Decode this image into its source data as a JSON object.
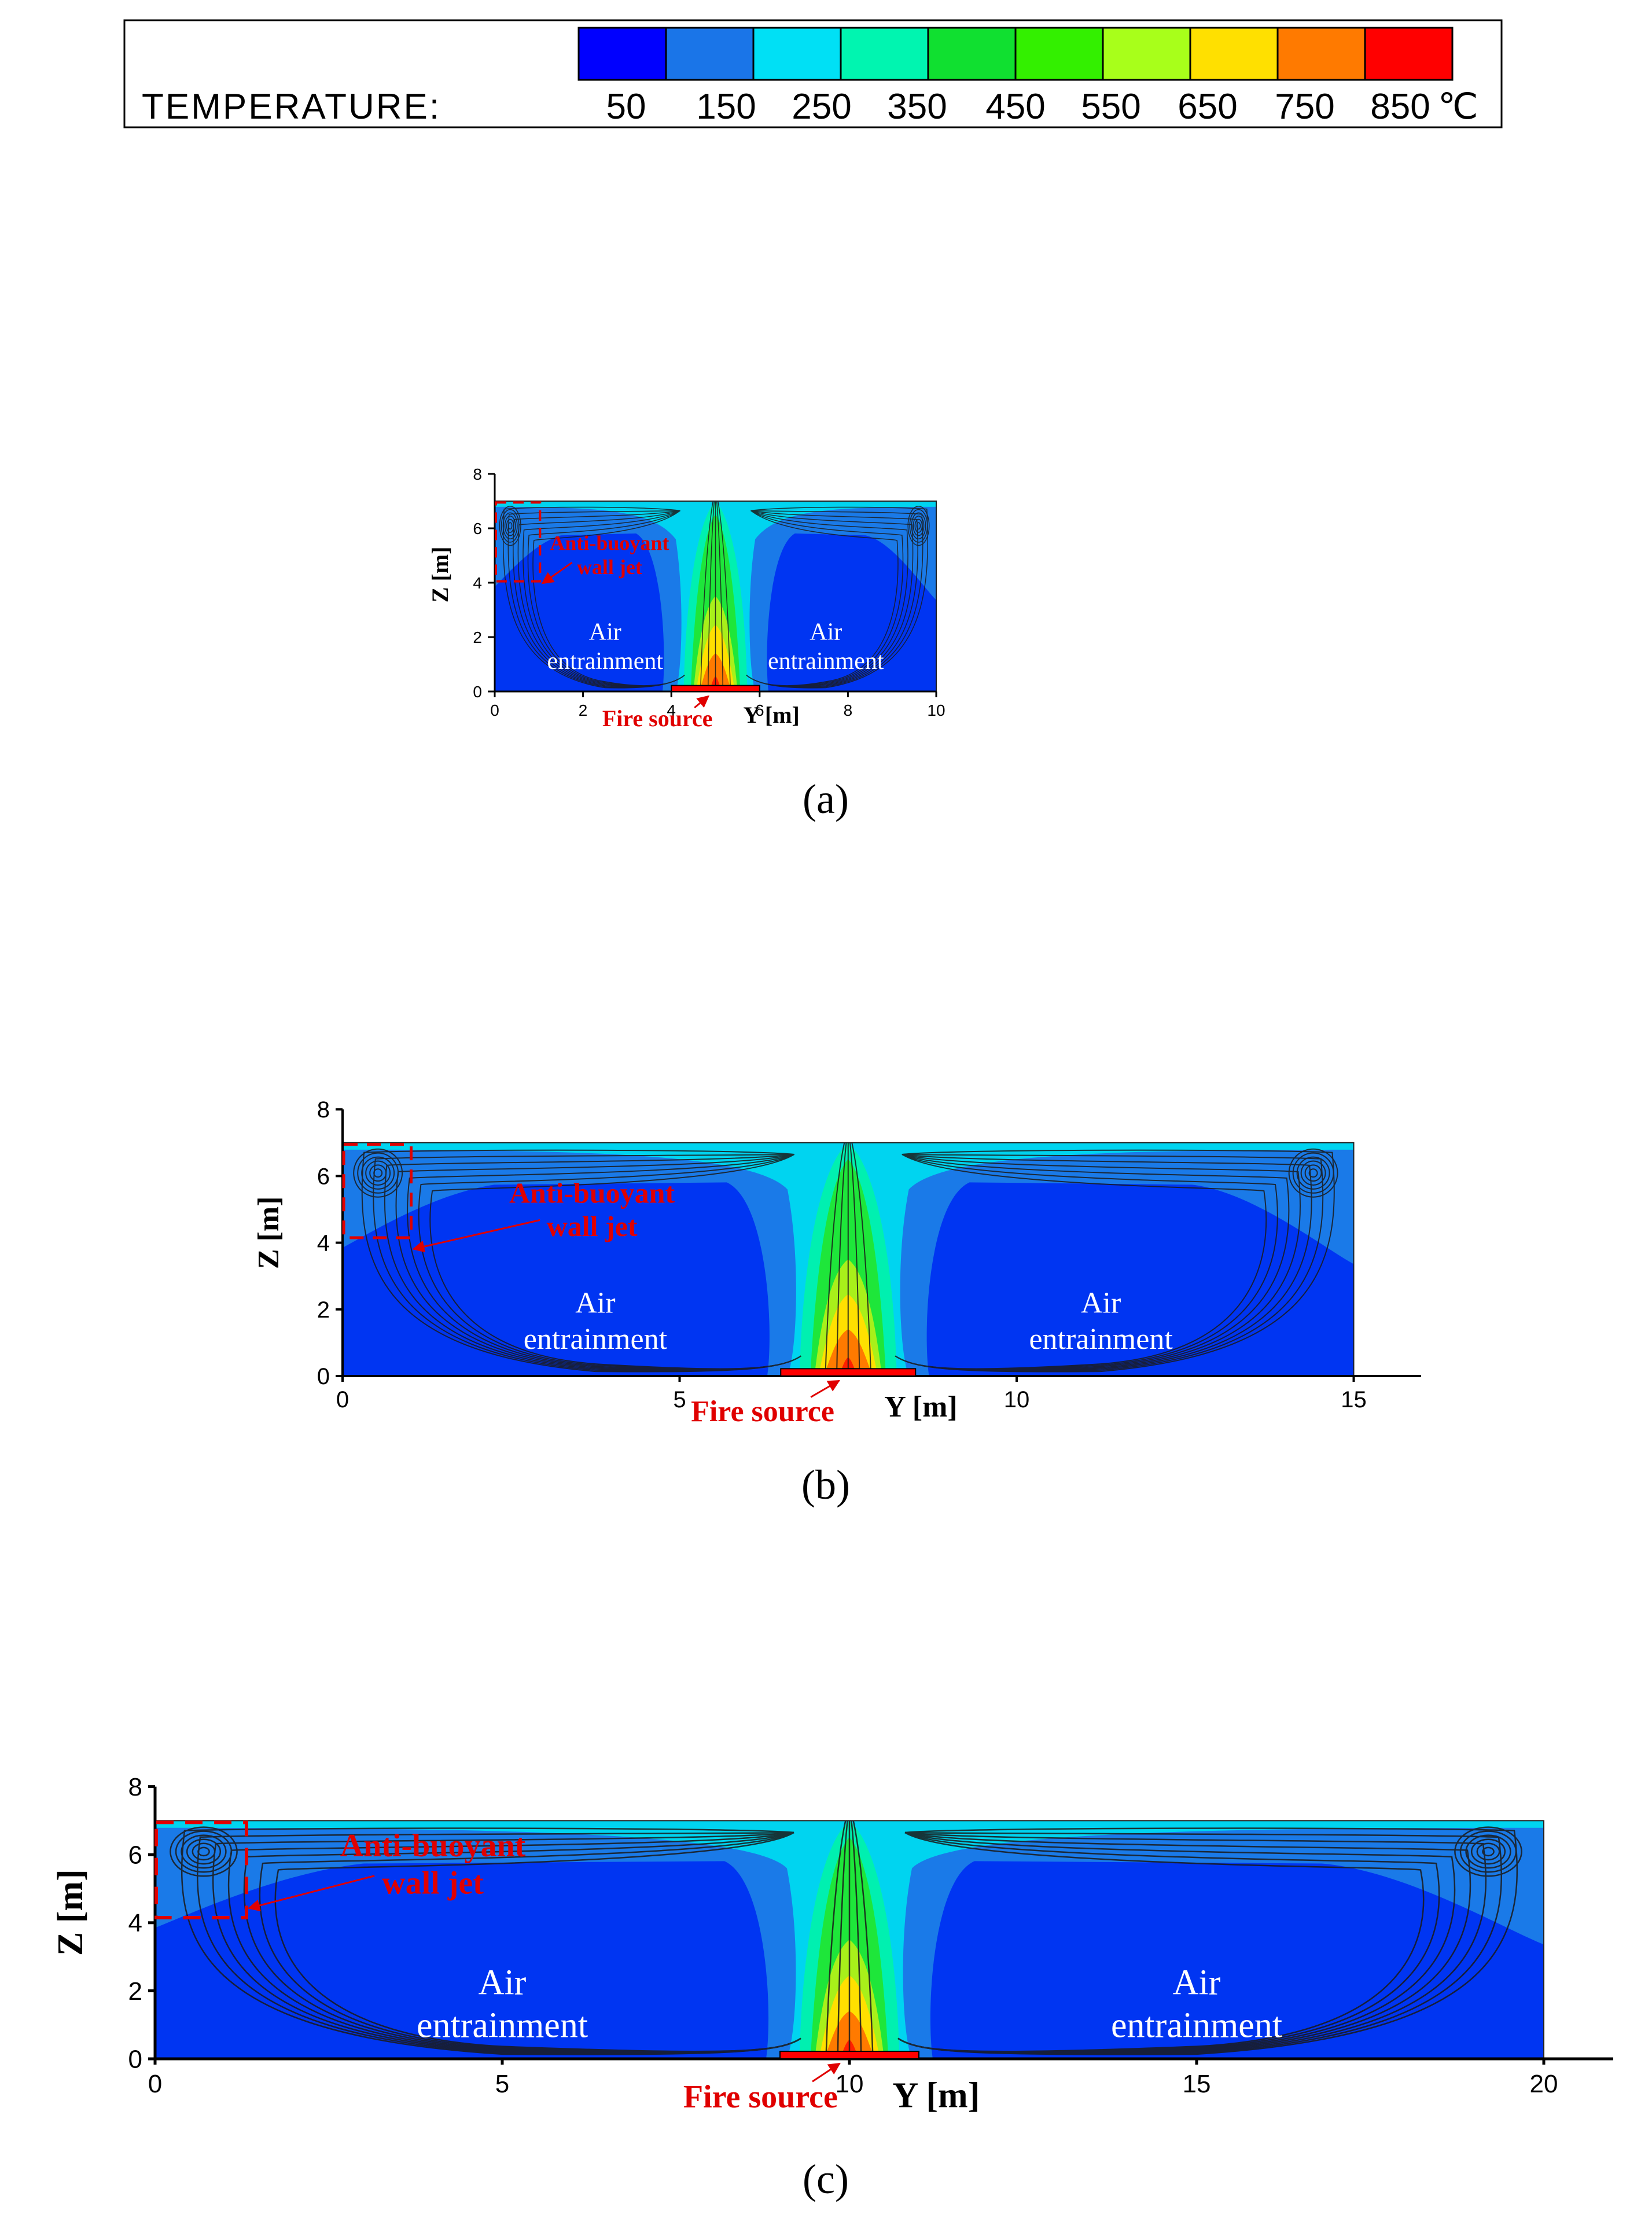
{
  "legend": {
    "label": "TEMPERATURE:",
    "ticks": [
      "50",
      "150",
      "250",
      "350",
      "450",
      "550",
      "650",
      "750",
      "850"
    ],
    "unit": "℃",
    "colors": [
      "#0000ff",
      "#1a75e8",
      "#00e0f5",
      "#00f5b0",
      "#10e030",
      "#33f000",
      "#a8ff1a",
      "#ffe000",
      "#ff7a00",
      "#ff0000"
    ]
  },
  "chart_data": [
    {
      "type": "heatmap",
      "panel_label": "(a)",
      "xlabel": "Y [m]",
      "ylabel": "Z [m]",
      "xlim": [
        0,
        10
      ],
      "ylim": [
        0,
        8
      ],
      "xticks": [
        "0",
        "2",
        "4",
        "6",
        "8",
        "10"
      ],
      "yticks": [
        "0",
        "2",
        "4",
        "6",
        "8"
      ],
      "domain_height": 7,
      "fire_source": [
        4,
        6
      ],
      "annotations": {
        "jet": [
          "Anti-buoyant",
          "wall jet"
        ],
        "air_left": [
          "Air",
          "entrainment"
        ],
        "air_right": [
          "Air",
          "entrainment"
        ],
        "fire": "Fire source"
      }
    },
    {
      "type": "heatmap",
      "panel_label": "(b)",
      "xlabel": "Y [m]",
      "ylabel": "Z [m]",
      "xlim": [
        0,
        16
      ],
      "ylim": [
        0,
        8
      ],
      "xticks": [
        "0",
        "5",
        "10",
        "15"
      ],
      "yticks": [
        "0",
        "2",
        "4",
        "6",
        "8"
      ],
      "domain_width": 15,
      "domain_height": 7,
      "fire_source": [
        6.5,
        8.5
      ],
      "annotations": {
        "jet": [
          "Anti-buoyant",
          "wall jet"
        ],
        "air_left": [
          "Air",
          "entrainment"
        ],
        "air_right": [
          "Air",
          "entrainment"
        ],
        "fire": "Fire source"
      }
    },
    {
      "type": "heatmap",
      "panel_label": "(c)",
      "xlabel": "Y [m]",
      "ylabel": "Z [m]",
      "xlim": [
        0,
        21
      ],
      "ylim": [
        0,
        8
      ],
      "xticks": [
        "0",
        "5",
        "10",
        "15",
        "20"
      ],
      "yticks": [
        "0",
        "2",
        "4",
        "6",
        "8"
      ],
      "domain_width": 20,
      "domain_height": 7,
      "fire_source": [
        9,
        11
      ],
      "annotations": {
        "jet": [
          "Anti-buoyant",
          "wall jet"
        ],
        "air_left": [
          "Air",
          "entrainment"
        ],
        "air_right": [
          "Air",
          "entrainment"
        ],
        "fire": "Fire source"
      }
    }
  ]
}
